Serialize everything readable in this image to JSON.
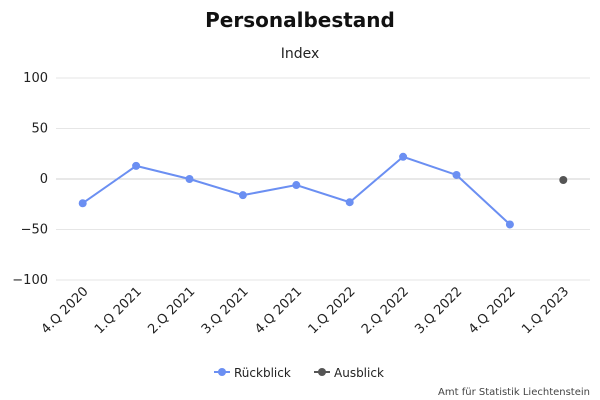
{
  "chart_data": {
    "type": "line",
    "title": "Personalbestand",
    "subtitle": "Index",
    "categories": [
      "4.Q 2020",
      "1.Q 2021",
      "2.Q 2021",
      "3.Q 2021",
      "4.Q 2021",
      "1.Q 2022",
      "2.Q 2022",
      "3.Q 2022",
      "4.Q 2022",
      "1.Q 2023"
    ],
    "yticks": [
      100,
      50,
      0,
      -50,
      -100
    ],
    "ylim": [
      -100,
      100
    ],
    "grid": true,
    "legend_position": "bottom-center",
    "series": [
      {
        "name": "Rückblick",
        "color": "#6b8ff2",
        "values": [
          -24,
          13,
          0,
          -16,
          -6,
          -23,
          22,
          4,
          -45,
          null
        ]
      },
      {
        "name": "Ausblick",
        "color": "#555555",
        "values": [
          null,
          null,
          null,
          null,
          null,
          null,
          null,
          null,
          null,
          -1
        ]
      }
    ],
    "credit": "Amt für Statistik Liechtenstein"
  }
}
